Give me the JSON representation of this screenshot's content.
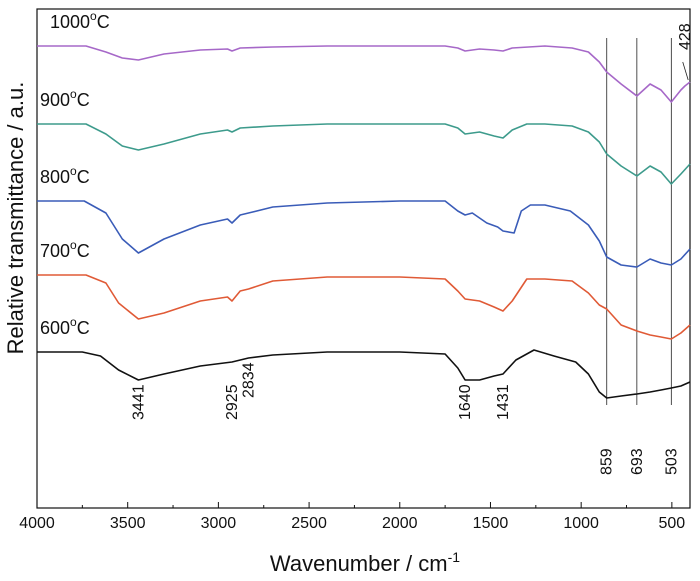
{
  "chart_data": {
    "type": "line",
    "title": "",
    "xlabel": "Wavenumber / cm",
    "xlabel_sup": "-1",
    "ylabel": "Relative transmittance / a.u.",
    "xlim": [
      4000,
      400
    ],
    "x_reversed": true,
    "y_ticks_shown": false,
    "grid": false,
    "x_ticks": [
      4000,
      3500,
      3000,
      2500,
      2000,
      1500,
      1000,
      500
    ],
    "x_tick_labels": [
      "4000",
      "3500",
      "3000",
      "2500",
      "2000",
      "1500",
      "1000",
      "500"
    ],
    "series": [
      {
        "name": "600",
        "unit_sup": "o",
        "unit": "C",
        "color": "#111111",
        "points": [
          [
            4000,
            0
          ],
          [
            3750,
            0
          ],
          [
            3650,
            -4
          ],
          [
            3550,
            -18
          ],
          [
            3441,
            -28
          ],
          [
            3300,
            -22
          ],
          [
            3100,
            -14
          ],
          [
            2925,
            -10
          ],
          [
            2834,
            -6
          ],
          [
            2700,
            -3
          ],
          [
            2400,
            0
          ],
          [
            2000,
            0
          ],
          [
            1750,
            -2
          ],
          [
            1680,
            -16
          ],
          [
            1640,
            -28
          ],
          [
            1560,
            -28
          ],
          [
            1480,
            -24
          ],
          [
            1431,
            -22
          ],
          [
            1360,
            -8
          ],
          [
            1260,
            2
          ],
          [
            1150,
            -4
          ],
          [
            1030,
            -10
          ],
          [
            960,
            -22
          ],
          [
            900,
            -40
          ],
          [
            859,
            -46
          ],
          [
            780,
            -44
          ],
          [
            693,
            -42
          ],
          [
            620,
            -40
          ],
          [
            560,
            -38
          ],
          [
            503,
            -36
          ],
          [
            450,
            -34
          ],
          [
            400,
            -30
          ]
        ]
      },
      {
        "name": "700",
        "unit_sup": "o",
        "unit": "C",
        "color": "#e05a36",
        "points": [
          [
            4000,
            0
          ],
          [
            3730,
            0
          ],
          [
            3620,
            -8
          ],
          [
            3550,
            -28
          ],
          [
            3441,
            -44
          ],
          [
            3300,
            -38
          ],
          [
            3100,
            -26
          ],
          [
            2950,
            -22
          ],
          [
            2925,
            -26
          ],
          [
            2880,
            -16
          ],
          [
            2834,
            -14
          ],
          [
            2700,
            -6
          ],
          [
            2400,
            -2
          ],
          [
            2000,
            -2
          ],
          [
            1750,
            -4
          ],
          [
            1680,
            -16
          ],
          [
            1640,
            -24
          ],
          [
            1560,
            -26
          ],
          [
            1480,
            -32
          ],
          [
            1431,
            -36
          ],
          [
            1380,
            -26
          ],
          [
            1300,
            -4
          ],
          [
            1200,
            -4
          ],
          [
            1050,
            -6
          ],
          [
            960,
            -18
          ],
          [
            900,
            -30
          ],
          [
            859,
            -34
          ],
          [
            780,
            -50
          ],
          [
            693,
            -56
          ],
          [
            620,
            -60
          ],
          [
            560,
            -62
          ],
          [
            503,
            -64
          ],
          [
            450,
            -58
          ],
          [
            400,
            -50
          ]
        ]
      },
      {
        "name": "800",
        "unit_sup": "o",
        "unit": "C",
        "color": "#3a5cb8",
        "points": [
          [
            4000,
            0
          ],
          [
            3740,
            0
          ],
          [
            3620,
            -12
          ],
          [
            3530,
            -38
          ],
          [
            3441,
            -52
          ],
          [
            3300,
            -38
          ],
          [
            3100,
            -24
          ],
          [
            2950,
            -18
          ],
          [
            2925,
            -22
          ],
          [
            2880,
            -14
          ],
          [
            2834,
            -12
          ],
          [
            2700,
            -6
          ],
          [
            2400,
            -2
          ],
          [
            2000,
            0
          ],
          [
            1750,
            0
          ],
          [
            1680,
            -10
          ],
          [
            1640,
            -14
          ],
          [
            1600,
            -12
          ],
          [
            1520,
            -22
          ],
          [
            1460,
            -26
          ],
          [
            1431,
            -30
          ],
          [
            1370,
            -32
          ],
          [
            1330,
            -10
          ],
          [
            1280,
            -4
          ],
          [
            1200,
            -4
          ],
          [
            1060,
            -10
          ],
          [
            960,
            -24
          ],
          [
            900,
            -40
          ],
          [
            859,
            -56
          ],
          [
            780,
            -64
          ],
          [
            693,
            -66
          ],
          [
            620,
            -58
          ],
          [
            560,
            -62
          ],
          [
            503,
            -64
          ],
          [
            450,
            -58
          ],
          [
            400,
            -48
          ]
        ]
      },
      {
        "name": "900",
        "unit_sup": "o",
        "unit": "C",
        "color": "#3d9b8c",
        "points": [
          [
            4000,
            0
          ],
          [
            3730,
            0
          ],
          [
            3620,
            -10
          ],
          [
            3530,
            -22
          ],
          [
            3441,
            -26
          ],
          [
            3300,
            -20
          ],
          [
            3100,
            -10
          ],
          [
            2950,
            -6
          ],
          [
            2925,
            -8
          ],
          [
            2880,
            -4
          ],
          [
            2700,
            -2
          ],
          [
            2400,
            0
          ],
          [
            2000,
            0
          ],
          [
            1750,
            0
          ],
          [
            1680,
            -4
          ],
          [
            1640,
            -10
          ],
          [
            1560,
            -8
          ],
          [
            1480,
            -12
          ],
          [
            1431,
            -14
          ],
          [
            1380,
            -6
          ],
          [
            1300,
            0
          ],
          [
            1200,
            0
          ],
          [
            1050,
            -2
          ],
          [
            960,
            -8
          ],
          [
            900,
            -18
          ],
          [
            859,
            -30
          ],
          [
            780,
            -42
          ],
          [
            693,
            -52
          ],
          [
            620,
            -42
          ],
          [
            560,
            -48
          ],
          [
            503,
            -60
          ],
          [
            450,
            -50
          ],
          [
            400,
            -40
          ]
        ]
      },
      {
        "name": "1000",
        "unit_sup": "o",
        "unit": "C",
        "color": "#a668c8",
        "points": [
          [
            4000,
            0
          ],
          [
            3730,
            0
          ],
          [
            3620,
            -6
          ],
          [
            3530,
            -12
          ],
          [
            3441,
            -14
          ],
          [
            3300,
            -8
          ],
          [
            3100,
            -4
          ],
          [
            2950,
            -3
          ],
          [
            2925,
            -5
          ],
          [
            2880,
            -2
          ],
          [
            2700,
            -1
          ],
          [
            2400,
            0
          ],
          [
            2000,
            0
          ],
          [
            1750,
            0
          ],
          [
            1680,
            -2
          ],
          [
            1640,
            -5
          ],
          [
            1560,
            -3
          ],
          [
            1480,
            -4
          ],
          [
            1431,
            -5
          ],
          [
            1380,
            -2
          ],
          [
            1200,
            0
          ],
          [
            1050,
            -2
          ],
          [
            960,
            -6
          ],
          [
            900,
            -16
          ],
          [
            859,
            -26
          ],
          [
            780,
            -38
          ],
          [
            693,
            -50
          ],
          [
            620,
            -38
          ],
          [
            560,
            -44
          ],
          [
            503,
            -56
          ],
          [
            450,
            -44
          ],
          [
            428,
            -40
          ],
          [
            400,
            -36
          ]
        ]
      }
    ],
    "peak_labels": [
      {
        "wavenumber": 3441,
        "label": "3441"
      },
      {
        "wavenumber": 2925,
        "label": "2925"
      },
      {
        "wavenumber": 2834,
        "label": "2834"
      },
      {
        "wavenumber": 1640,
        "label": "1640"
      },
      {
        "wavenumber": 1431,
        "label": "1431"
      },
      {
        "wavenumber": 859,
        "label": "859"
      },
      {
        "wavenumber": 693,
        "label": "693"
      },
      {
        "wavenumber": 503,
        "label": "503"
      },
      {
        "wavenumber": 428,
        "label": "428"
      }
    ],
    "reference_lines": [
      859,
      693,
      503
    ]
  }
}
